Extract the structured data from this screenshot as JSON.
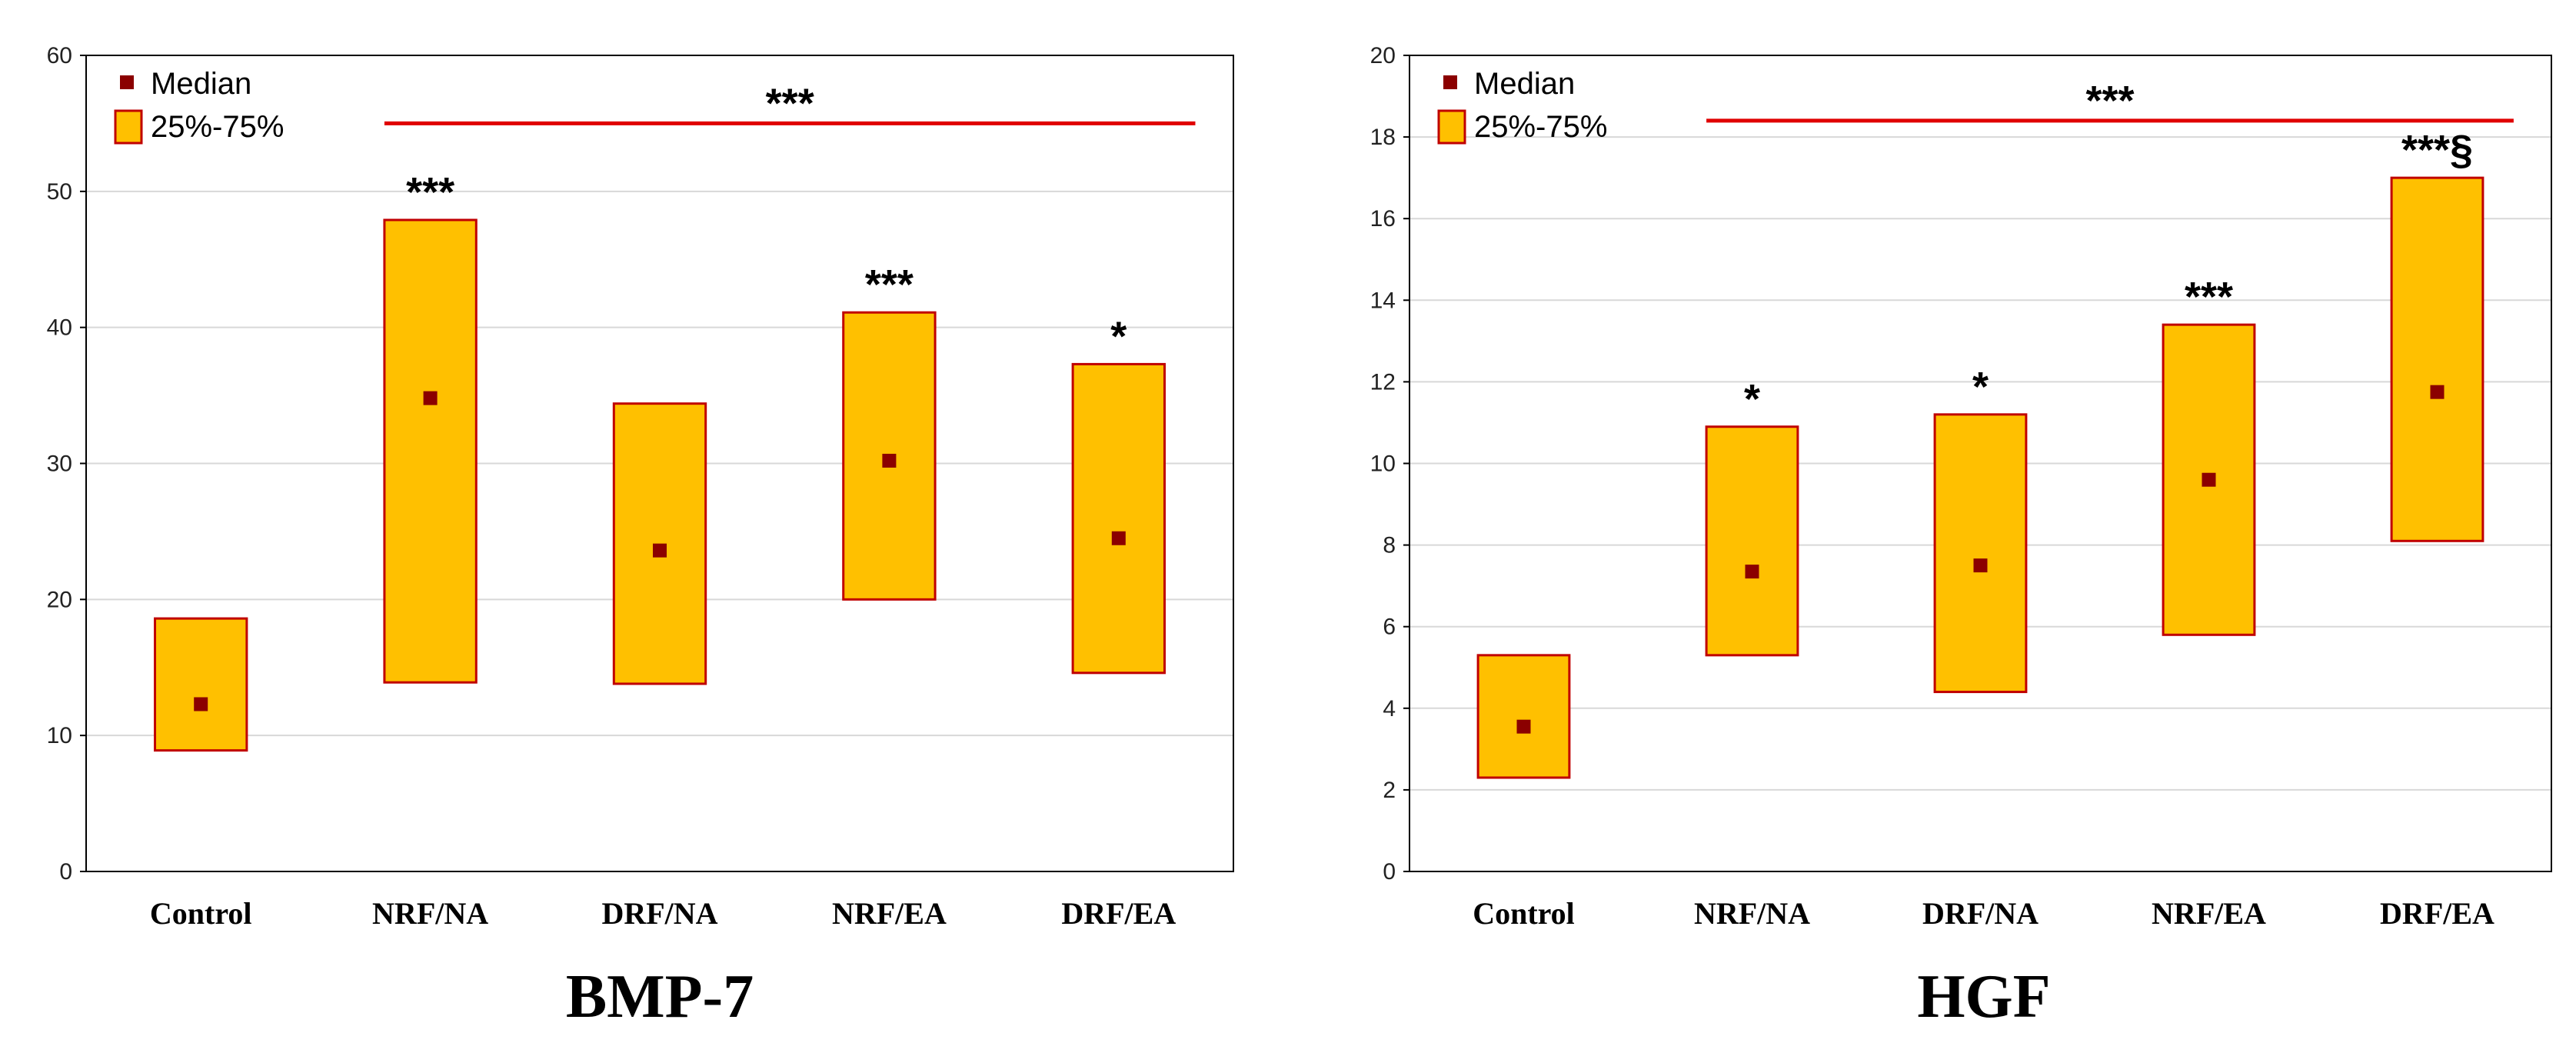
{
  "chart_data": [
    {
      "type": "box",
      "title": "BMP-7",
      "categories": [
        "Control",
        "NRF/NA",
        "DRF/NA",
        "NRF/EA",
        "DRF/EA"
      ],
      "ylim": [
        0,
        60
      ],
      "yticks": [
        0,
        10,
        20,
        30,
        40,
        50,
        60
      ],
      "grid": true,
      "legend": {
        "position": "top-left",
        "entries": [
          {
            "label": "Median",
            "marker": "square"
          },
          {
            "label": "25%-75%",
            "marker": "box"
          }
        ]
      },
      "series": [
        {
          "name": "Median",
          "values": [
            12.3,
            34.8,
            23.6,
            30.2,
            24.5
          ]
        },
        {
          "name": "25%",
          "values": [
            8.9,
            13.9,
            13.8,
            20.0,
            14.6
          ]
        },
        {
          "name": "75%",
          "values": [
            18.6,
            47.9,
            34.4,
            41.1,
            37.3
          ]
        }
      ],
      "annotations": [
        {
          "category": "NRF/NA",
          "text": "***"
        },
        {
          "category": "NRF/EA",
          "text": "***"
        },
        {
          "category": "DRF/EA",
          "text": "*"
        }
      ],
      "bracket": {
        "from": "NRF/NA",
        "to": "DRF/EA",
        "y": 55,
        "text": "***"
      }
    },
    {
      "type": "box",
      "title": "HGF",
      "categories": [
        "Control",
        "NRF/NA",
        "DRF/NA",
        "NRF/EA",
        "DRF/EA"
      ],
      "ylim": [
        0,
        20
      ],
      "yticks": [
        0,
        2,
        4,
        6,
        8,
        10,
        12,
        14,
        16,
        18,
        20
      ],
      "grid": true,
      "legend": {
        "position": "top-left",
        "entries": [
          {
            "label": "Median",
            "marker": "square"
          },
          {
            "label": "25%-75%",
            "marker": "box"
          }
        ]
      },
      "series": [
        {
          "name": "Median",
          "values": [
            3.55,
            7.35,
            7.5,
            9.6,
            11.75
          ]
        },
        {
          "name": "25%",
          "values": [
            2.3,
            5.3,
            4.4,
            5.8,
            8.1
          ]
        },
        {
          "name": "75%",
          "values": [
            5.3,
            10.9,
            11.2,
            13.4,
            17.0
          ]
        }
      ],
      "annotations": [
        {
          "category": "NRF/NA",
          "text": "*"
        },
        {
          "category": "DRF/NA",
          "text": "*"
        },
        {
          "category": "NRF/EA",
          "text": "***"
        },
        {
          "category": "DRF/EA",
          "text": "***§"
        }
      ],
      "bracket": {
        "from": "NRF/NA",
        "to": "DRF/EA",
        "y": 18.4,
        "text": "***"
      }
    }
  ],
  "colors": {
    "box_fill": "#FFC000",
    "box_stroke": "#C00000",
    "median": "#8B0000",
    "bracket": "#E00000",
    "grid": "#D8D8D8",
    "axis": "#000000"
  }
}
